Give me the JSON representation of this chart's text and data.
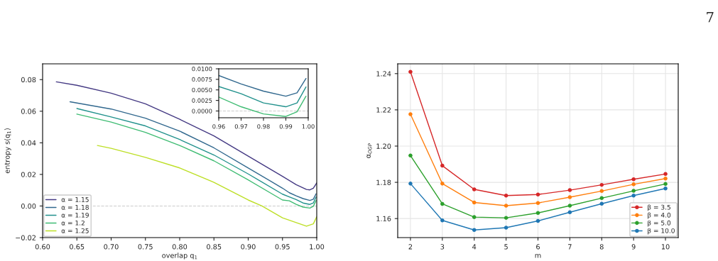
{
  "chart_data": [
    {
      "type": "line",
      "xlabel": "overlap q$_{1}$",
      "ylabel": "entropy s(q$_{1}$)",
      "legend": "lower left",
      "grid": false,
      "xlim": [
        0.6,
        1.0
      ],
      "xticks": [
        {
          "value": 0.6,
          "label": "0.60"
        },
        {
          "value": 0.65,
          "label": "0.65"
        },
        {
          "value": 0.7,
          "label": "0.70"
        },
        {
          "value": 0.75,
          "label": "0.75"
        },
        {
          "value": 0.8,
          "label": "0.80"
        },
        {
          "value": 0.85,
          "label": "0.85"
        },
        {
          "value": 0.9,
          "label": "0.90"
        },
        {
          "value": 0.95,
          "label": "0.95"
        },
        {
          "value": 1.0,
          "label": "1.00"
        }
      ],
      "ylim": [
        -0.02,
        0.09
      ],
      "yticks": [
        {
          "value": -0.02,
          "label": "−0.02"
        },
        {
          "value": 0,
          "label": "0.00"
        },
        {
          "value": 0.02,
          "label": "0.02"
        },
        {
          "value": 0.04,
          "label": "0.04"
        },
        {
          "value": 0.06,
          "label": "0.06"
        },
        {
          "value": 0.08,
          "label": "0.08"
        }
      ],
      "ref_lines": [
        {
          "axis": "y",
          "value": 0,
          "color": "#cccccc",
          "line_style": "dashed"
        }
      ],
      "series": [
        {
          "name": "α = 1.15",
          "color": "#443983",
          "x": [
            0.62,
            0.65,
            0.7,
            0.75,
            0.8,
            0.85,
            0.9,
            0.95,
            0.97,
            0.985,
            0.99,
            0.995,
            1.0
          ],
          "values": [
            0.0786,
            0.0764,
            0.0714,
            0.0647,
            0.0549,
            0.0444,
            0.0316,
            0.0188,
            0.0135,
            0.0105,
            0.0102,
            0.0113,
            0.0146
          ]
        },
        {
          "name": "α = 1.18",
          "color": "#31688e",
          "x": [
            0.64,
            0.7,
            0.75,
            0.8,
            0.85,
            0.9,
            0.95,
            0.96,
            0.97,
            0.98,
            0.99,
            0.995,
            0.999
          ],
          "values": [
            0.066,
            0.0614,
            0.0556,
            0.0474,
            0.0368,
            0.0241,
            0.0113,
            0.0084,
            0.0064,
            0.0047,
            0.0035,
            0.0043,
            0.0077
          ]
        },
        {
          "name": "α = 1.19",
          "color": "#21918c",
          "x": [
            0.65,
            0.7,
            0.75,
            0.8,
            0.85,
            0.9,
            0.95,
            0.96,
            0.97,
            0.98,
            0.99,
            0.995,
            0.999
          ],
          "values": [
            0.0617,
            0.0564,
            0.0507,
            0.0421,
            0.0323,
            0.0203,
            0.0075,
            0.0058,
            0.0041,
            0.0019,
            0.001,
            0.0019,
            0.0057
          ]
        },
        {
          "name": "α = 1.2",
          "color": "#3fbc73",
          "x": [
            0.65,
            0.7,
            0.75,
            0.8,
            0.85,
            0.9,
            0.95,
            0.96,
            0.97,
            0.98,
            0.99,
            0.995,
            0.999
          ],
          "values": [
            0.0582,
            0.0531,
            0.0466,
            0.0383,
            0.0286,
            0.0165,
            0.0038,
            0.0033,
            0.001,
            -0.0007,
            -0.0013,
            -0.0002,
            0.0035
          ]
        },
        {
          "name": "α = 1.25",
          "color": "#bddf26",
          "x": [
            0.68,
            0.7,
            0.75,
            0.8,
            0.85,
            0.9,
            0.92,
            0.95,
            0.985,
            0.995,
            1.0
          ],
          "values": [
            0.0383,
            0.0365,
            0.0308,
            0.0241,
            0.015,
            0.0038,
            0.0,
            -0.0075,
            -0.0128,
            -0.0113,
            -0.0068
          ]
        }
      ]
    },
    {
      "type": "line",
      "grid": false,
      "legend": false,
      "xlim": [
        0.96,
        1.0
      ],
      "xticks": [
        {
          "value": 0.96,
          "label": "0.96"
        },
        {
          "value": 0.97,
          "label": "0.97"
        },
        {
          "value": 0.98,
          "label": "0.98"
        },
        {
          "value": 0.99,
          "label": "0.99"
        },
        {
          "value": 1.0,
          "label": "1.00"
        }
      ],
      "ylim": [
        -0.0016,
        0.01
      ],
      "yticks": [
        {
          "value": 0,
          "label": "0.0000"
        },
        {
          "value": 0.0025,
          "label": "0.0025"
        },
        {
          "value": 0.005,
          "label": "0.0050"
        },
        {
          "value": 0.0075,
          "label": "0.0075"
        },
        {
          "value": 0.01,
          "label": "0.0100"
        }
      ],
      "ref_lines": [
        {
          "axis": "y",
          "value": 0,
          "color": "#cccccc",
          "line_style": "dashed"
        }
      ],
      "series": [
        {
          "color": "#31688e",
          "x": [
            0.96,
            0.97,
            0.98,
            0.99,
            0.995,
            0.999
          ],
          "values": [
            0.0084,
            0.0064,
            0.0047,
            0.0035,
            0.0043,
            0.0077
          ]
        },
        {
          "color": "#21918c",
          "x": [
            0.96,
            0.97,
            0.98,
            0.99,
            0.995,
            0.999
          ],
          "values": [
            0.0058,
            0.0041,
            0.0019,
            0.001,
            0.0019,
            0.0057
          ]
        },
        {
          "color": "#3fbc73",
          "x": [
            0.96,
            0.97,
            0.98,
            0.99,
            0.995,
            0.999
          ],
          "values": [
            0.0033,
            0.001,
            -0.0007,
            -0.0013,
            -0.0002,
            0.0035
          ]
        }
      ]
    },
    {
      "type": "line",
      "xlabel": "m",
      "ylabel": "α$_{OGP}$",
      "legend": "lower right",
      "grid": true,
      "marker": "circle",
      "annotations": [
        "7"
      ],
      "xlim": [
        1.6,
        10.4
      ],
      "xticks": [
        2,
        3,
        4,
        5,
        6,
        7,
        8,
        9,
        10
      ],
      "ylim": [
        1.1495,
        1.2454
      ],
      "yticks": [
        1.16,
        1.18,
        {
          "value": 1.2,
          "label": "1.20"
        },
        1.22,
        1.24
      ],
      "series": [
        {
          "name": "β = 3.5",
          "color": "#d62728",
          "x": [
            2,
            3,
            4,
            5,
            6,
            7,
            8,
            9,
            10
          ],
          "values": [
            1.241,
            1.1892,
            1.1761,
            1.1727,
            1.1733,
            1.1757,
            1.1786,
            1.1817,
            1.1846
          ]
        },
        {
          "name": "β = 4.0",
          "color": "#ff7f0e",
          "x": [
            2,
            3,
            4,
            5,
            6,
            7,
            8,
            9,
            10
          ],
          "values": [
            1.2176,
            1.1793,
            1.1689,
            1.1671,
            1.1686,
            1.1718,
            1.1752,
            1.1789,
            1.1821
          ]
        },
        {
          "name": "β = 5.0",
          "color": "#2ca02c",
          "x": [
            2,
            3,
            4,
            5,
            6,
            7,
            8,
            9,
            10
          ],
          "values": [
            1.1948,
            1.1681,
            1.1608,
            1.1604,
            1.1631,
            1.1671,
            1.1713,
            1.1753,
            1.1791
          ]
        },
        {
          "name": "β = 10.0",
          "color": "#1f77b4",
          "x": [
            2,
            3,
            4,
            5,
            6,
            7,
            8,
            9,
            10
          ],
          "values": [
            1.1793,
            1.159,
            1.1537,
            1.155,
            1.1587,
            1.1635,
            1.1682,
            1.1727,
            1.1766
          ]
        }
      ]
    }
  ]
}
